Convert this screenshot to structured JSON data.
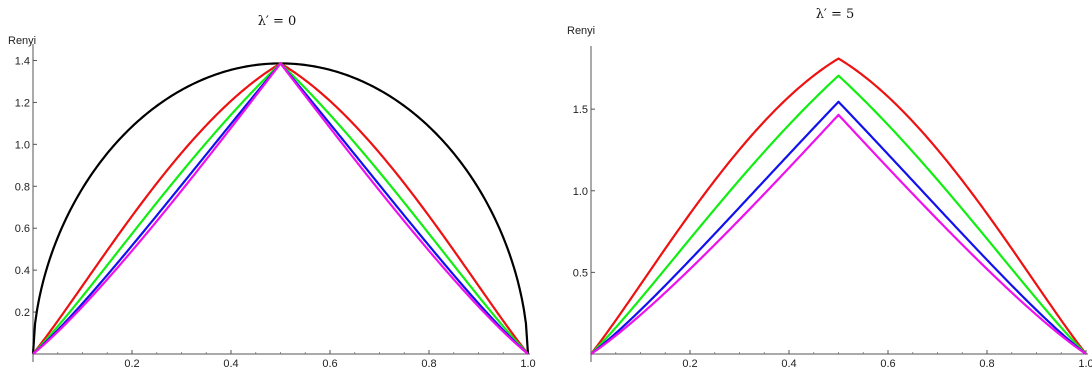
{
  "chart_data": [
    {
      "type": "line",
      "title": "λ′ = 0",
      "ylabel": "Renyi",
      "xlabel": "",
      "xlim": [
        0,
        1.0
      ],
      "ylim": [
        0,
        1.45
      ],
      "xticks": [
        0.2,
        0.4,
        0.6,
        0.8,
        1.0
      ],
      "xtick_labels": [
        "0.2",
        "0.4",
        "0.6",
        "0.8",
        "1.0"
      ],
      "yticks": [
        0.2,
        0.4,
        0.6,
        0.8,
        1.0,
        1.2,
        1.4
      ],
      "ytick_labels": [
        "0.2",
        "0.4",
        "0.6",
        "0.8",
        "1.0",
        "1.2",
        "1.4"
      ],
      "grid": false,
      "series": [
        {
          "color": "#000000",
          "peak": 1.386,
          "shape": 1.0,
          "x": [
            0,
            0.1,
            0.2,
            0.3,
            0.4,
            0.5,
            0.6,
            0.7,
            0.8,
            0.9,
            1.0
          ],
          "y": [
            0,
            0.65,
            1.0,
            1.22,
            1.35,
            1.386,
            1.35,
            1.22,
            1.0,
            0.65,
            0
          ]
        },
        {
          "color": "#ee1111",
          "peak": 1.386,
          "shape": 0.8,
          "x": [
            0,
            0.1,
            0.2,
            0.3,
            0.4,
            0.5,
            0.6,
            0.7,
            0.8,
            0.9,
            1.0
          ],
          "y": [
            0,
            0.52,
            0.9,
            1.16,
            1.33,
            1.386,
            1.33,
            1.16,
            0.9,
            0.52,
            0
          ]
        },
        {
          "color": "#11ee11",
          "peak": 1.386,
          "shape": 0.45,
          "x": [
            0,
            0.1,
            0.2,
            0.3,
            0.4,
            0.5,
            0.6,
            0.7,
            0.8,
            0.9,
            1.0
          ],
          "y": [
            0,
            0.4,
            0.73,
            1.0,
            1.27,
            1.386,
            1.27,
            1.0,
            0.73,
            0.4,
            0
          ]
        },
        {
          "color": "#1111ee",
          "peak": 1.386,
          "shape": 0.22,
          "x": [
            0,
            0.1,
            0.2,
            0.3,
            0.4,
            0.5,
            0.6,
            0.7,
            0.8,
            0.9,
            1.0
          ],
          "y": [
            0,
            0.32,
            0.58,
            0.85,
            1.18,
            1.386,
            1.18,
            0.85,
            0.58,
            0.32,
            0
          ]
        },
        {
          "color": "#ee11ee",
          "peak": 1.386,
          "shape": 0.12,
          "x": [
            0,
            0.1,
            0.2,
            0.3,
            0.4,
            0.5,
            0.6,
            0.7,
            0.8,
            0.9,
            1.0
          ],
          "y": [
            0,
            0.28,
            0.52,
            0.78,
            1.1,
            1.386,
            1.1,
            0.78,
            0.52,
            0.28,
            0
          ]
        }
      ]
    },
    {
      "type": "line",
      "title": "λ′ = 5",
      "ylabel": "Renyi",
      "xlabel": "",
      "xlim": [
        0,
        1.0
      ],
      "ylim": [
        0,
        1.85
      ],
      "xticks": [
        0.2,
        0.4,
        0.6,
        0.8,
        1.0
      ],
      "xtick_labels": [
        "0.2",
        "0.4",
        "0.6",
        "0.8",
        "1.0"
      ],
      "yticks": [
        0.5,
        1.0,
        1.5
      ],
      "ytick_labels": [
        "0.5",
        "1.0",
        "1.5"
      ],
      "grid": false,
      "series": [
        {
          "color": "#ee1111",
          "peak": 1.81,
          "shape": 0.8,
          "x": [
            0,
            0.1,
            0.2,
            0.3,
            0.4,
            0.5,
            0.6,
            0.7,
            0.8,
            0.9,
            1.0
          ],
          "y": [
            0,
            0.72,
            1.2,
            1.52,
            1.73,
            1.81,
            1.73,
            1.52,
            1.2,
            0.72,
            0
          ]
        },
        {
          "color": "#11ee11",
          "peak": 1.705,
          "shape": 0.45,
          "x": [
            0,
            0.1,
            0.2,
            0.3,
            0.4,
            0.5,
            0.6,
            0.7,
            0.8,
            0.9,
            1.0
          ],
          "y": [
            0,
            0.48,
            0.88,
            1.22,
            1.55,
            1.705,
            1.55,
            1.22,
            0.88,
            0.48,
            0
          ]
        },
        {
          "color": "#1111ee",
          "peak": 1.545,
          "shape": 0.22,
          "x": [
            0,
            0.1,
            0.2,
            0.3,
            0.4,
            0.5,
            0.6,
            0.7,
            0.8,
            0.9,
            1.0
          ],
          "y": [
            0,
            0.36,
            0.67,
            0.98,
            1.34,
            1.545,
            1.34,
            0.98,
            0.67,
            0.36,
            0
          ]
        },
        {
          "color": "#ee11ee",
          "peak": 1.465,
          "shape": 0.12,
          "x": [
            0,
            0.1,
            0.2,
            0.3,
            0.4,
            0.5,
            0.6,
            0.7,
            0.8,
            0.9,
            1.0
          ],
          "y": [
            0,
            0.31,
            0.58,
            0.86,
            1.2,
            1.465,
            1.2,
            0.86,
            0.58,
            0.31,
            0
          ]
        }
      ]
    }
  ]
}
